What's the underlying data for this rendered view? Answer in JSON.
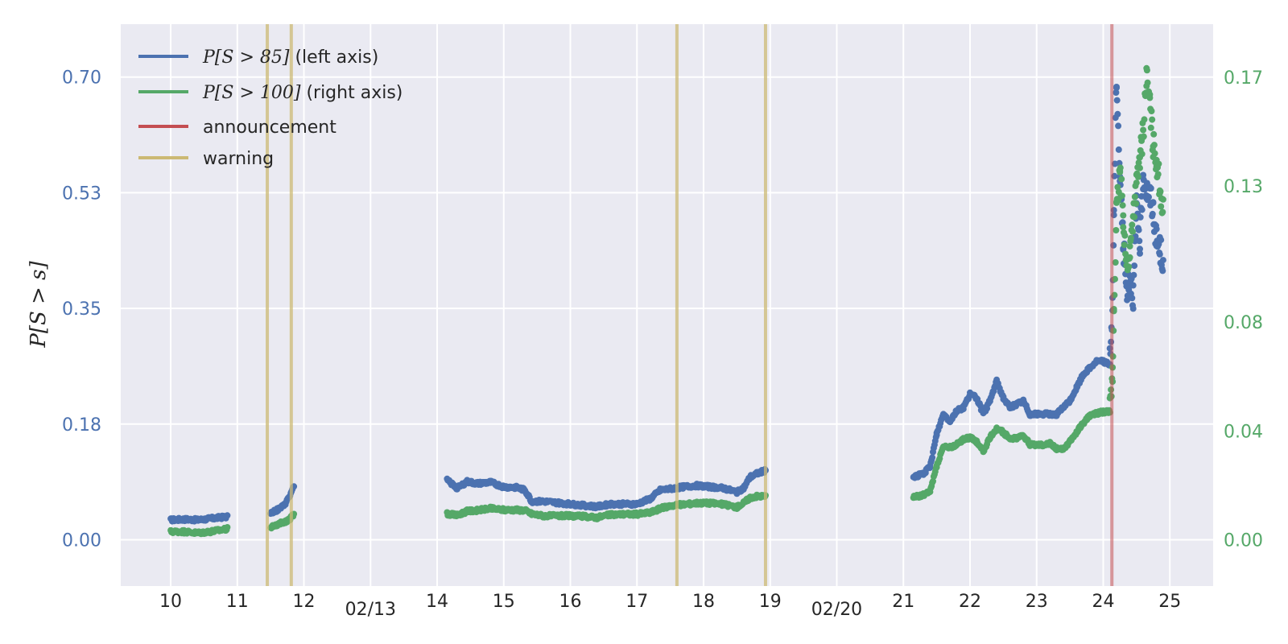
{
  "chart_data": {
    "type": "scatter",
    "ylabel": "P[S > s]",
    "x_axis": {
      "unit": "day of month",
      "range": [
        9.25,
        25.65
      ],
      "ticks": [
        {
          "value": 10,
          "label": "10",
          "row": "minor"
        },
        {
          "value": 11,
          "label": "11",
          "row": "minor"
        },
        {
          "value": 12,
          "label": "12",
          "row": "minor"
        },
        {
          "value": 13,
          "label": "02/13",
          "row": "major"
        },
        {
          "value": 14,
          "label": "14",
          "row": "minor"
        },
        {
          "value": 15,
          "label": "15",
          "row": "minor"
        },
        {
          "value": 16,
          "label": "16",
          "row": "minor"
        },
        {
          "value": 17,
          "label": "17",
          "row": "minor"
        },
        {
          "value": 18,
          "label": "18",
          "row": "minor"
        },
        {
          "value": 19,
          "label": "19",
          "row": "minor"
        },
        {
          "value": 20,
          "label": "02/20",
          "row": "major"
        },
        {
          "value": 21,
          "label": "21",
          "row": "minor"
        },
        {
          "value": 22,
          "label": "22",
          "row": "minor"
        },
        {
          "value": 23,
          "label": "23",
          "row": "minor"
        },
        {
          "value": 24,
          "label": "24",
          "row": "minor"
        },
        {
          "value": 25,
          "label": "25",
          "row": "minor"
        }
      ]
    },
    "y_left": {
      "range": [
        -0.07,
        0.78
      ],
      "ticks": [
        {
          "value": 0.0,
          "label": "0.00"
        },
        {
          "value": 0.175,
          "label": "0.18"
        },
        {
          "value": 0.35,
          "label": "0.35"
        },
        {
          "value": 0.525,
          "label": "0.53"
        },
        {
          "value": 0.7,
          "label": "0.70"
        }
      ],
      "color": "#4c72b0"
    },
    "y_right": {
      "range": [
        -0.017,
        0.1895
      ],
      "ticks": [
        {
          "value": 0.0,
          "label": "0.00"
        },
        {
          "value": 0.04,
          "label": "0.04"
        },
        {
          "value": 0.08,
          "label": "0.08"
        },
        {
          "value": 0.13,
          "label": "0.13"
        },
        {
          "value": 0.17,
          "label": "0.17"
        }
      ],
      "color": "#55a868"
    },
    "grid": true,
    "legend": {
      "placement": "top-left",
      "entries": [
        {
          "math": "P[S > 85]",
          "text": " (left axis)",
          "color": "#4c72b0"
        },
        {
          "math": "P[S > 100]",
          "text": " (right axis)",
          "color": "#55a868"
        },
        {
          "math": "",
          "text": "announcement",
          "color": "#c44e52"
        },
        {
          "math": "",
          "text": "warning",
          "color": "#ccb974"
        }
      ]
    },
    "vlines": [
      {
        "x": 11.45,
        "kind": "warning",
        "color": "#ccb974"
      },
      {
        "x": 11.81,
        "kind": "warning",
        "color": "#ccb974"
      },
      {
        "x": 17.6,
        "kind": "warning",
        "color": "#ccb974"
      },
      {
        "x": 18.93,
        "kind": "warning",
        "color": "#ccb974"
      },
      {
        "x": 24.13,
        "kind": "announcement",
        "color": "#c44e52"
      }
    ],
    "series": [
      {
        "name": "P[S > 85]",
        "axis": "left",
        "color": "#4c72b0",
        "segments": [
          {
            "x": [
              10.0,
              10.2,
              10.4,
              10.6,
              10.85
            ],
            "y": [
              0.03,
              0.031,
              0.03,
              0.032,
              0.035
            ]
          },
          {
            "x": [
              11.5,
              11.6,
              11.7,
              11.78,
              11.85
            ],
            "y": [
              0.04,
              0.045,
              0.052,
              0.065,
              0.08
            ]
          },
          {
            "x": [
              14.15,
              14.3,
              14.45,
              14.6,
              14.8,
              15.0,
              15.2,
              15.32,
              15.42,
              15.6,
              15.8,
              16.0,
              16.2,
              16.4,
              16.6,
              16.8,
              17.0,
              17.2,
              17.35,
              17.5,
              17.7,
              17.9,
              18.1,
              18.3,
              18.5,
              18.6,
              18.7,
              18.8,
              18.93
            ],
            "y": [
              0.09,
              0.078,
              0.088,
              0.085,
              0.087,
              0.08,
              0.079,
              0.075,
              0.058,
              0.058,
              0.056,
              0.054,
              0.052,
              0.05,
              0.054,
              0.054,
              0.054,
              0.062,
              0.075,
              0.077,
              0.08,
              0.082,
              0.08,
              0.078,
              0.072,
              0.078,
              0.095,
              0.1,
              0.105
            ]
          },
          {
            "x": [
              21.15,
              21.3,
              21.4,
              21.5,
              21.6,
              21.7,
              21.8,
              21.9,
              22.0,
              22.1,
              22.2,
              22.3,
              22.4,
              22.5,
              22.6,
              22.7,
              22.8,
              22.9,
              23.0,
              23.1,
              23.2,
              23.3,
              23.4,
              23.5,
              23.6,
              23.7,
              23.8,
              23.9,
              24.0,
              24.1
            ],
            "y": [
              0.095,
              0.1,
              0.11,
              0.16,
              0.19,
              0.18,
              0.195,
              0.2,
              0.22,
              0.215,
              0.19,
              0.21,
              0.24,
              0.215,
              0.2,
              0.205,
              0.21,
              0.19,
              0.19,
              0.19,
              0.19,
              0.19,
              0.2,
              0.21,
              0.23,
              0.25,
              0.26,
              0.27,
              0.27,
              0.265
            ]
          },
          {
            "x": [
              24.1,
              24.14,
              24.16,
              24.2,
              24.25,
              24.3,
              24.35,
              24.4,
              24.45,
              24.5,
              24.55,
              24.6,
              24.65,
              24.7,
              24.75,
              24.8,
              24.85,
              24.9
            ],
            "y": [
              0.27,
              0.35,
              0.5,
              0.7,
              0.55,
              0.45,
              0.38,
              0.4,
              0.37,
              0.5,
              0.45,
              0.55,
              0.53,
              0.52,
              0.5,
              0.45,
              0.44,
              0.42
            ]
          }
        ]
      },
      {
        "name": "P[S > 100]",
        "axis": "right",
        "color": "#55a868",
        "segments": [
          {
            "x": [
              10.0,
              10.2,
              10.4,
              10.6,
              10.85
            ],
            "y": [
              0.003,
              0.003,
              0.0025,
              0.003,
              0.004
            ]
          },
          {
            "x": [
              11.5,
              11.6,
              11.7,
              11.78,
              11.85
            ],
            "y": [
              0.0045,
              0.0055,
              0.0065,
              0.0075,
              0.0095
            ]
          },
          {
            "x": [
              14.15,
              14.3,
              14.45,
              14.6,
              14.8,
              15.0,
              15.2,
              15.32,
              15.42,
              15.6,
              15.8,
              16.0,
              16.2,
              16.4,
              16.6,
              16.8,
              17.0,
              17.2,
              17.35,
              17.5,
              17.7,
              17.9,
              18.1,
              18.3,
              18.5,
              18.6,
              18.7,
              18.8,
              18.93
            ],
            "y": [
              0.0095,
              0.009,
              0.0105,
              0.0108,
              0.0115,
              0.011,
              0.011,
              0.0108,
              0.0095,
              0.0088,
              0.0088,
              0.0088,
              0.0086,
              0.0082,
              0.0092,
              0.0094,
              0.0094,
              0.01,
              0.0115,
              0.0125,
              0.013,
              0.0135,
              0.0135,
              0.013,
              0.012,
              0.0135,
              0.0155,
              0.016,
              0.016
            ]
          },
          {
            "x": [
              21.15,
              21.3,
              21.4,
              21.5,
              21.6,
              21.7,
              21.8,
              21.9,
              22.0,
              22.1,
              22.2,
              22.3,
              22.4,
              22.5,
              22.6,
              22.7,
              22.8,
              22.9,
              23.0,
              23.1,
              23.2,
              23.3,
              23.4,
              23.5,
              23.6,
              23.7,
              23.8,
              23.9,
              24.0,
              24.1
            ],
            "y": [
              0.0155,
              0.0165,
              0.0175,
              0.027,
              0.034,
              0.034,
              0.035,
              0.037,
              0.0375,
              0.036,
              0.0325,
              0.0375,
              0.041,
              0.0395,
              0.037,
              0.0375,
              0.0385,
              0.035,
              0.035,
              0.035,
              0.0355,
              0.0335,
              0.0335,
              0.036,
              0.0395,
              0.043,
              0.0455,
              0.0465,
              0.047,
              0.047
            ]
          },
          {
            "x": [
              24.1,
              24.14,
              24.16,
              24.2,
              24.25,
              24.3,
              24.35,
              24.4,
              24.45,
              24.5,
              24.55,
              24.6,
              24.65,
              24.7,
              24.75,
              24.8,
              24.85,
              24.9
            ],
            "y": [
              0.047,
              0.06,
              0.085,
              0.12,
              0.135,
              0.12,
              0.1,
              0.105,
              0.12,
              0.13,
              0.14,
              0.15,
              0.17,
              0.16,
              0.145,
              0.14,
              0.13,
              0.12
            ]
          }
        ]
      }
    ]
  }
}
